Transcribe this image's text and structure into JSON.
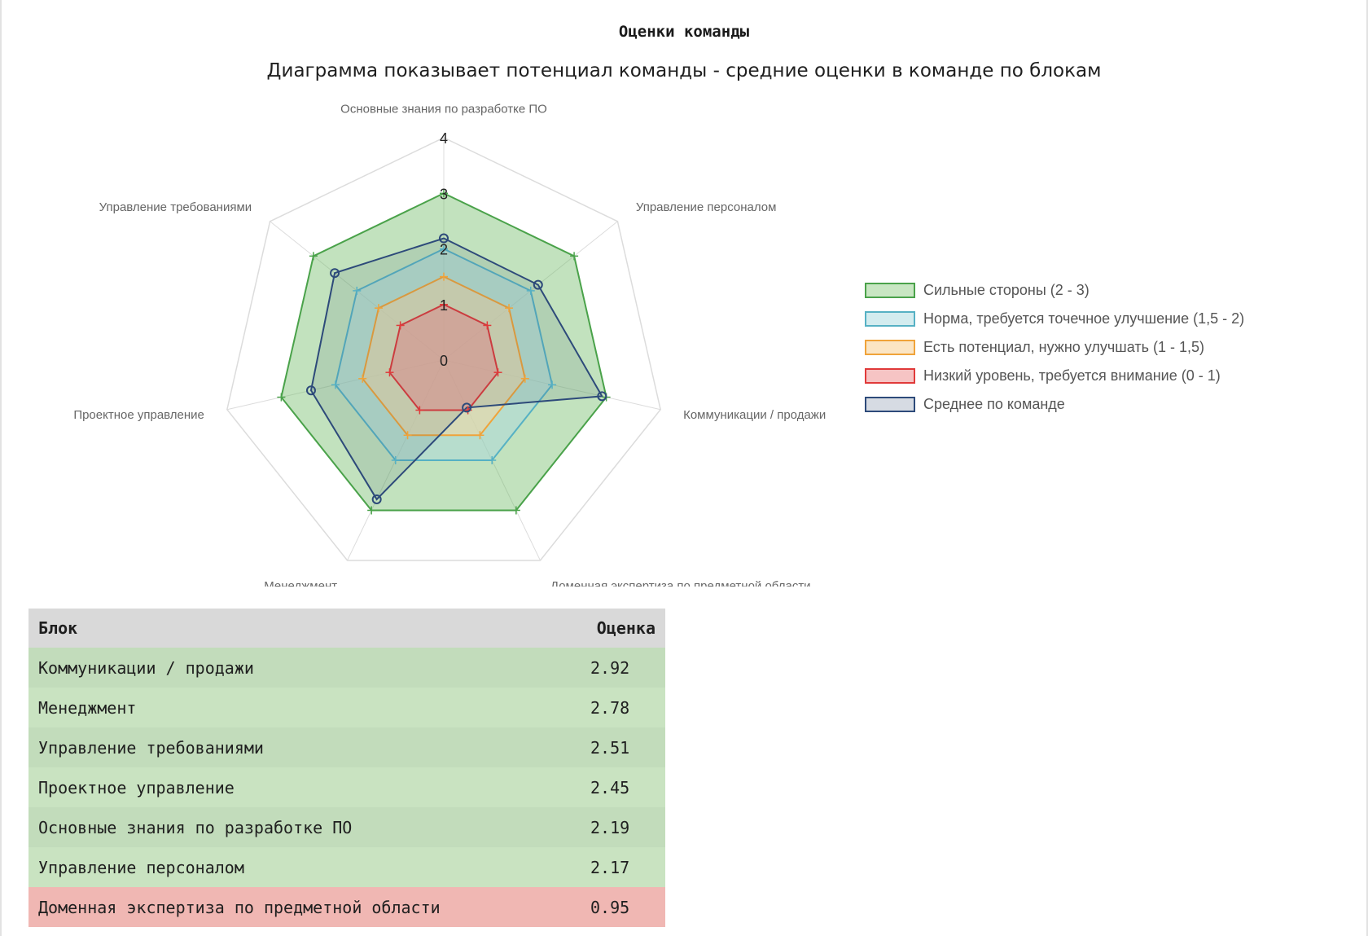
{
  "title": "Оценки команды",
  "subtitle": "Диаграмма показывает потенциал команды - средние оценки в команде по блокам",
  "chart_data": {
    "type": "radar",
    "axes": [
      "Основные знания по разработке ПО",
      "Управление персоналом",
      "Коммуникации / продажи",
      "Доменная экспертиза по предметной области",
      "Менеджмент",
      "Проектное управление",
      "Управление требованиями"
    ],
    "r_ticks": [
      "0",
      "1",
      "2",
      "3",
      "4"
    ],
    "r_range": [
      0,
      4
    ],
    "series": [
      {
        "name": "Сильные стороны (2 - 3)",
        "values": [
          3,
          3,
          3,
          3,
          3,
          3,
          3
        ],
        "color": "#4aa24a",
        "fill": "rgba(110,185,100,0.42)",
        "marker": "plus"
      },
      {
        "name": "Норма, требуется точечное улучшение (1,5 - 2)",
        "values": [
          2,
          2,
          2,
          2,
          2,
          2,
          2
        ],
        "color": "#56b1c4",
        "fill": "rgba(170,215,225,0.45)",
        "marker": "plus"
      },
      {
        "name": "Есть потенциал, нужно улучшать (1 - 1,5)",
        "values": [
          1.5,
          1.5,
          1.5,
          1.5,
          1.5,
          1.5,
          1.5
        ],
        "color": "#f0a33a",
        "fill": "rgba(250,215,160,0.5)",
        "marker": "plus"
      },
      {
        "name": "Низкий уровень, требуется внимание (0 - 1)",
        "values": [
          1,
          1,
          1,
          1,
          1,
          1,
          1
        ],
        "color": "#e03a3a",
        "fill": "rgba(240,140,140,0.5)",
        "marker": "plus"
      },
      {
        "name": "Среднее по команде",
        "values": [
          2.19,
          2.17,
          2.92,
          0.95,
          2.78,
          2.45,
          2.51
        ],
        "color": "#2d4a7a",
        "fill": "rgba(60,80,110,0.12)",
        "marker": "circle"
      }
    ],
    "legend_position": "right"
  },
  "legend": {
    "swatch_fill": [
      "#c8e6c2",
      "#d3ecef",
      "#fbe5c4",
      "#f6c4c4",
      "#d6dbe3"
    ]
  },
  "table": {
    "headers": {
      "block": "Блок",
      "score": "Оценка"
    },
    "rows": [
      {
        "block": "Коммуникации / продажи",
        "score": "2.92",
        "bg": "#c2dcbb"
      },
      {
        "block": "Менеджмент",
        "score": "2.78",
        "bg": "#c9e3c1"
      },
      {
        "block": "Управление требованиями",
        "score": "2.51",
        "bg": "#c2dcbb"
      },
      {
        "block": "Проектное управление",
        "score": "2.45",
        "bg": "#c9e3c1"
      },
      {
        "block": "Основные знания по разработке ПО",
        "score": "2.19",
        "bg": "#c2dcbb"
      },
      {
        "block": "Управление персоналом",
        "score": "2.17",
        "bg": "#c9e3c1"
      },
      {
        "block": "Доменная экспертиза по предметной области",
        "score": "0.95",
        "bg": "#f0b7b3"
      }
    ]
  }
}
